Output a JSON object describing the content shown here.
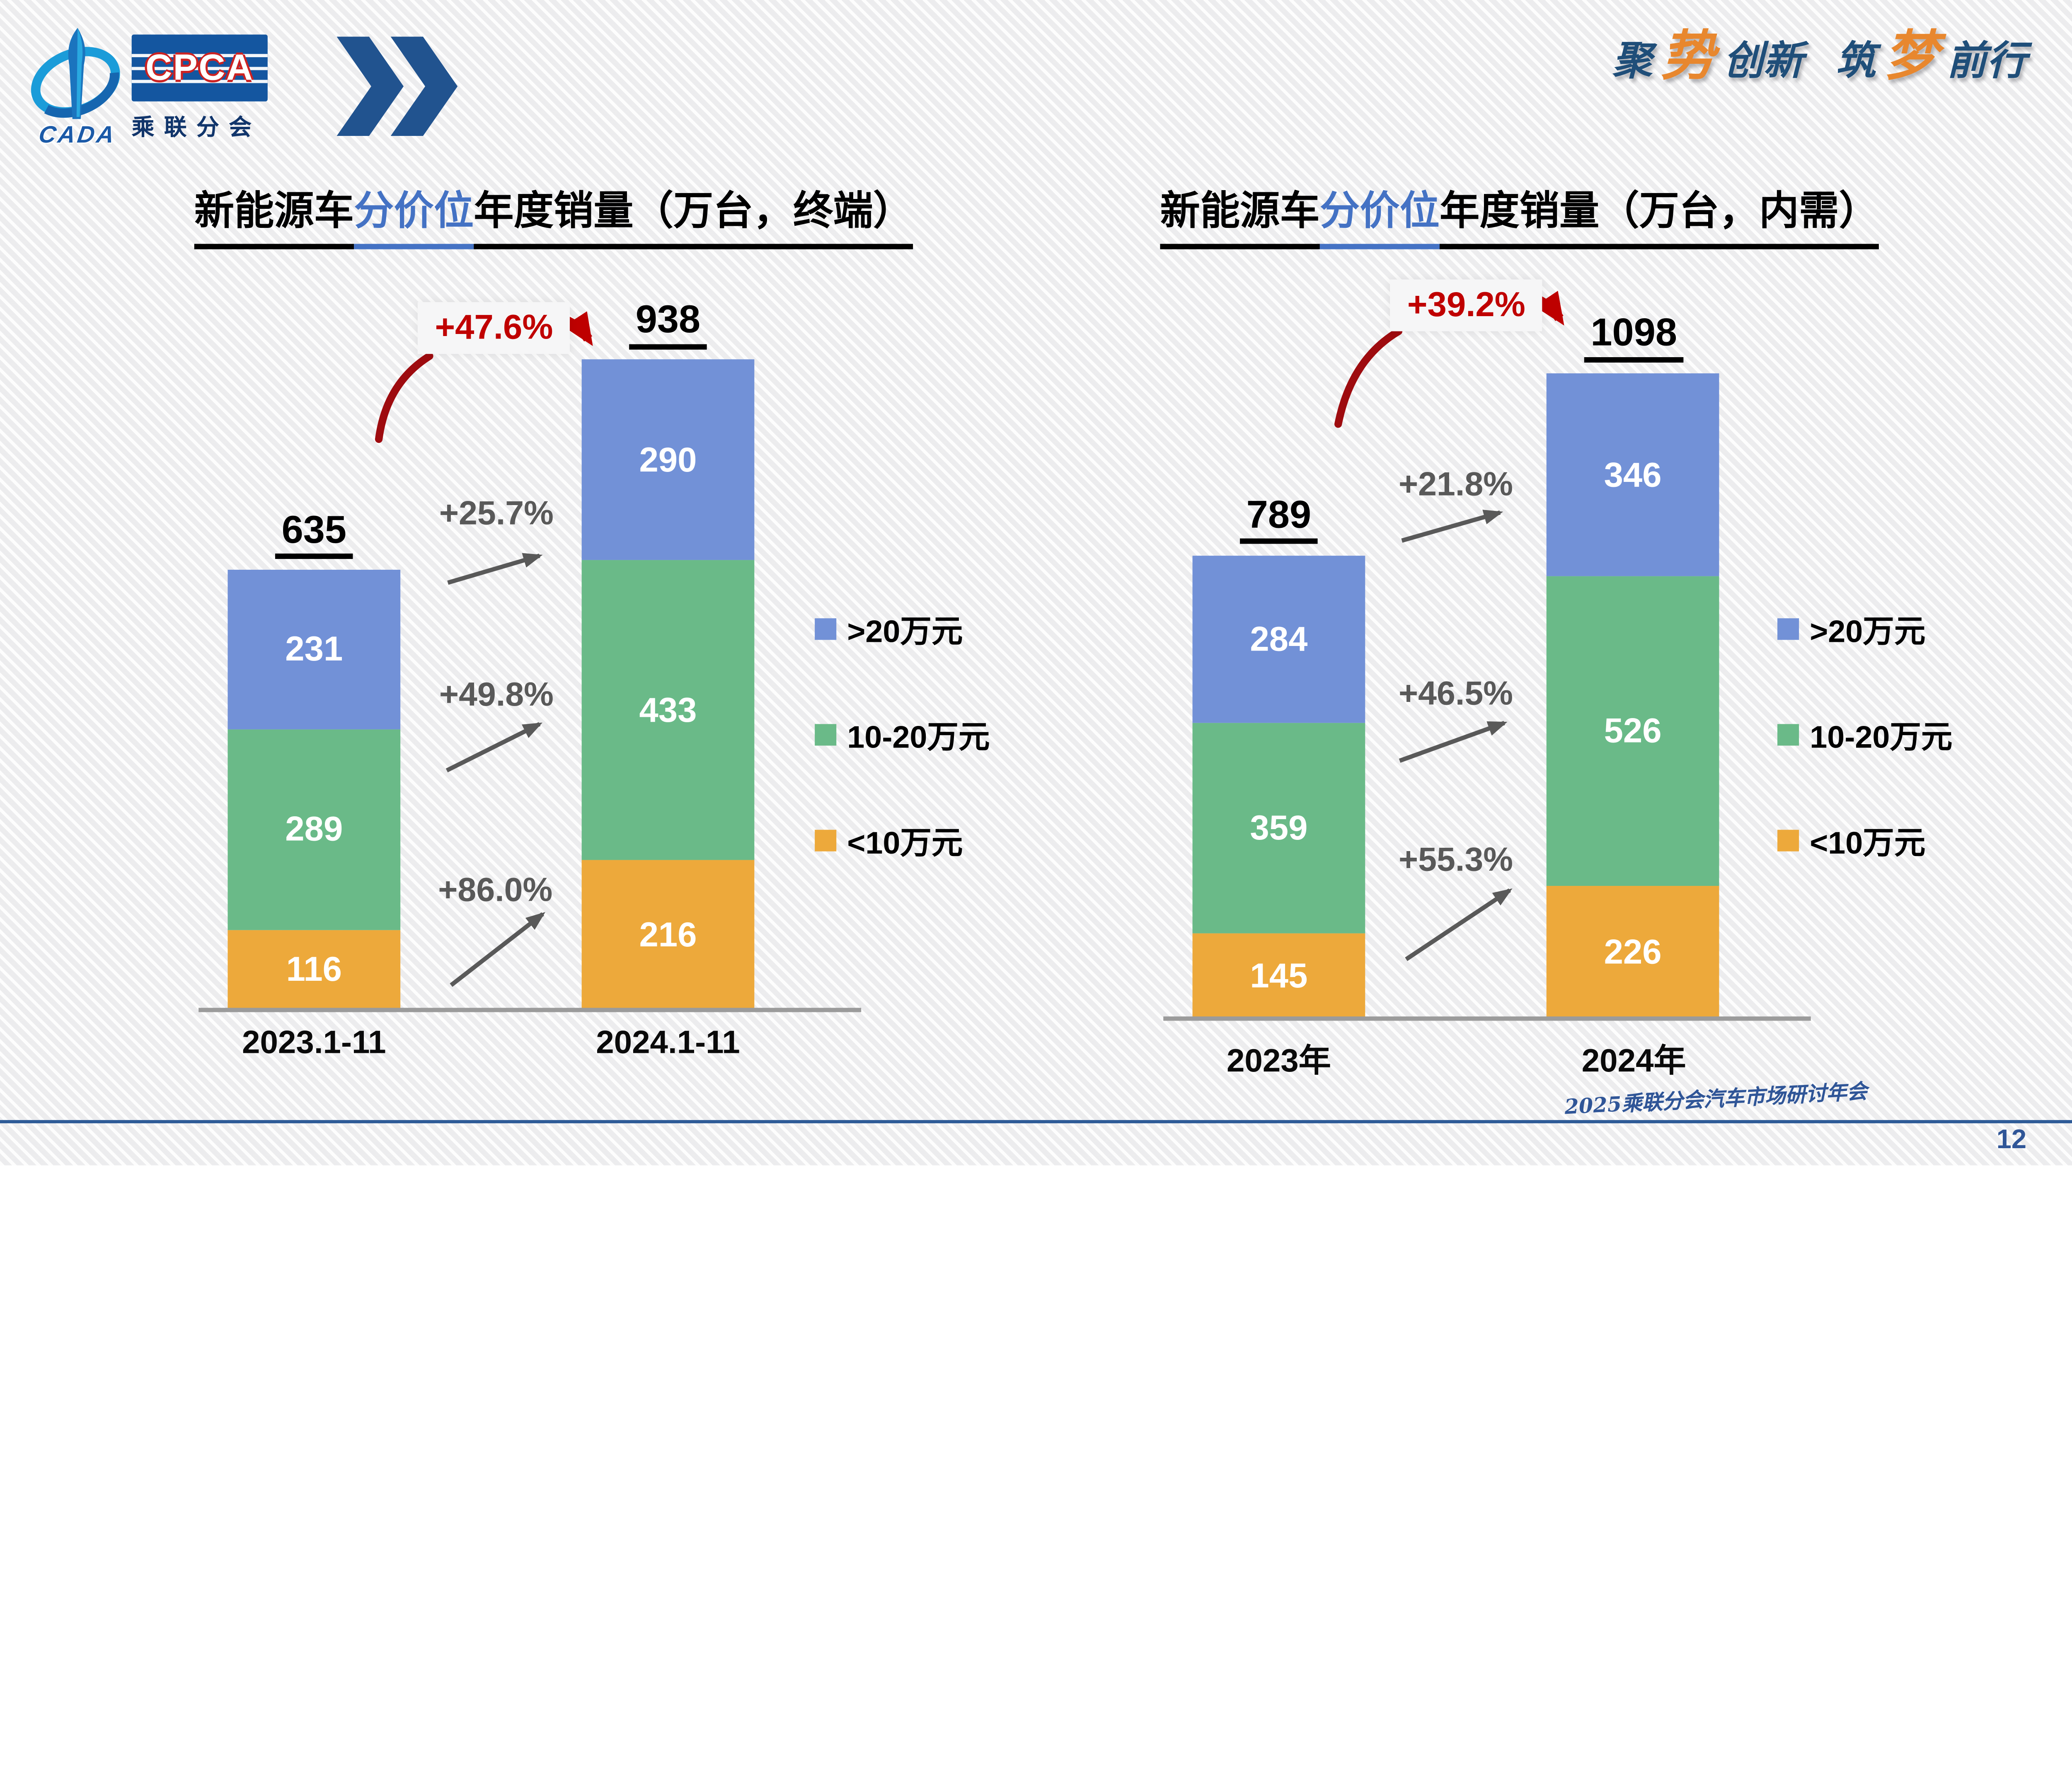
{
  "page": {
    "number": "12"
  },
  "header": {
    "logo": {
      "cpca": "CPCA",
      "branch": "乘联分会",
      "cada": "CADA"
    },
    "slogan": {
      "c1": "聚",
      "a1": "势",
      "c2": "创新",
      "c3": "筑",
      "a2": "梦",
      "c4": "前行"
    }
  },
  "footer": {
    "conference": "2025乘联分会汽车市场研讨年会"
  },
  "colors": {
    "bar_blue": "#7291D7",
    "bar_green": "#6ABA88",
    "bar_orange": "#EDA93B",
    "growth_red": "#C00000",
    "growth_gray": "#595959",
    "title_highlight_blue": "#4472C4",
    "footer_blue": "#2F5597"
  },
  "chart_data": [
    {
      "type": "bar",
      "stacked": true,
      "title": "新能源车分价位年度销量（万台，终端）",
      "title_parts": {
        "pre": "新能源车",
        "highlight": "分价位",
        "post": "年度销量（万台，终端）"
      },
      "unit": "万台",
      "categories": [
        "2023.1-11",
        "2024.1-11"
      ],
      "series": [
        {
          "name": ">20万元",
          "color": "#7291D7",
          "values": [
            231,
            290
          ]
        },
        {
          "name": "10-20万元",
          "color": "#6ABA88",
          "values": [
            289,
            433
          ]
        },
        {
          "name": "<10万元",
          "color": "#EDA93B",
          "values": [
            116,
            216
          ]
        }
      ],
      "totals": [
        635,
        938
      ],
      "total_growth": "+47.6%",
      "segment_growth": [
        {
          "series": ">20万元",
          "label": "+25.7%"
        },
        {
          "series": "10-20万元",
          "label": "+49.8%"
        },
        {
          "series": "<10万元",
          "label": "+86.0%"
        }
      ],
      "legend_position": "right",
      "grid": false,
      "ylim": [
        0,
        1000
      ]
    },
    {
      "type": "bar",
      "stacked": true,
      "title": "新能源车分价位年度销量（万台，内需）",
      "title_parts": {
        "pre": "新能源车",
        "highlight": "分价位",
        "post": "年度销量（万台，内需）"
      },
      "unit": "万台",
      "categories": [
        "2023年",
        "2024年"
      ],
      "series": [
        {
          "name": ">20万元",
          "color": "#7291D7",
          "values": [
            284,
            346
          ]
        },
        {
          "name": "10-20万元",
          "color": "#6ABA88",
          "values": [
            359,
            526
          ]
        },
        {
          "name": "<10万元",
          "color": "#EDA93B",
          "values": [
            145,
            226
          ]
        }
      ],
      "totals": [
        789,
        1098
      ],
      "total_growth": "+39.2%",
      "segment_growth": [
        {
          "series": ">20万元",
          "label": "+21.8%"
        },
        {
          "series": "10-20万元",
          "label": "+46.5%"
        },
        {
          "series": "<10万元",
          "label": "+55.3%"
        }
      ],
      "legend_position": "right",
      "grid": false,
      "ylim": [
        0,
        1200
      ]
    }
  ]
}
